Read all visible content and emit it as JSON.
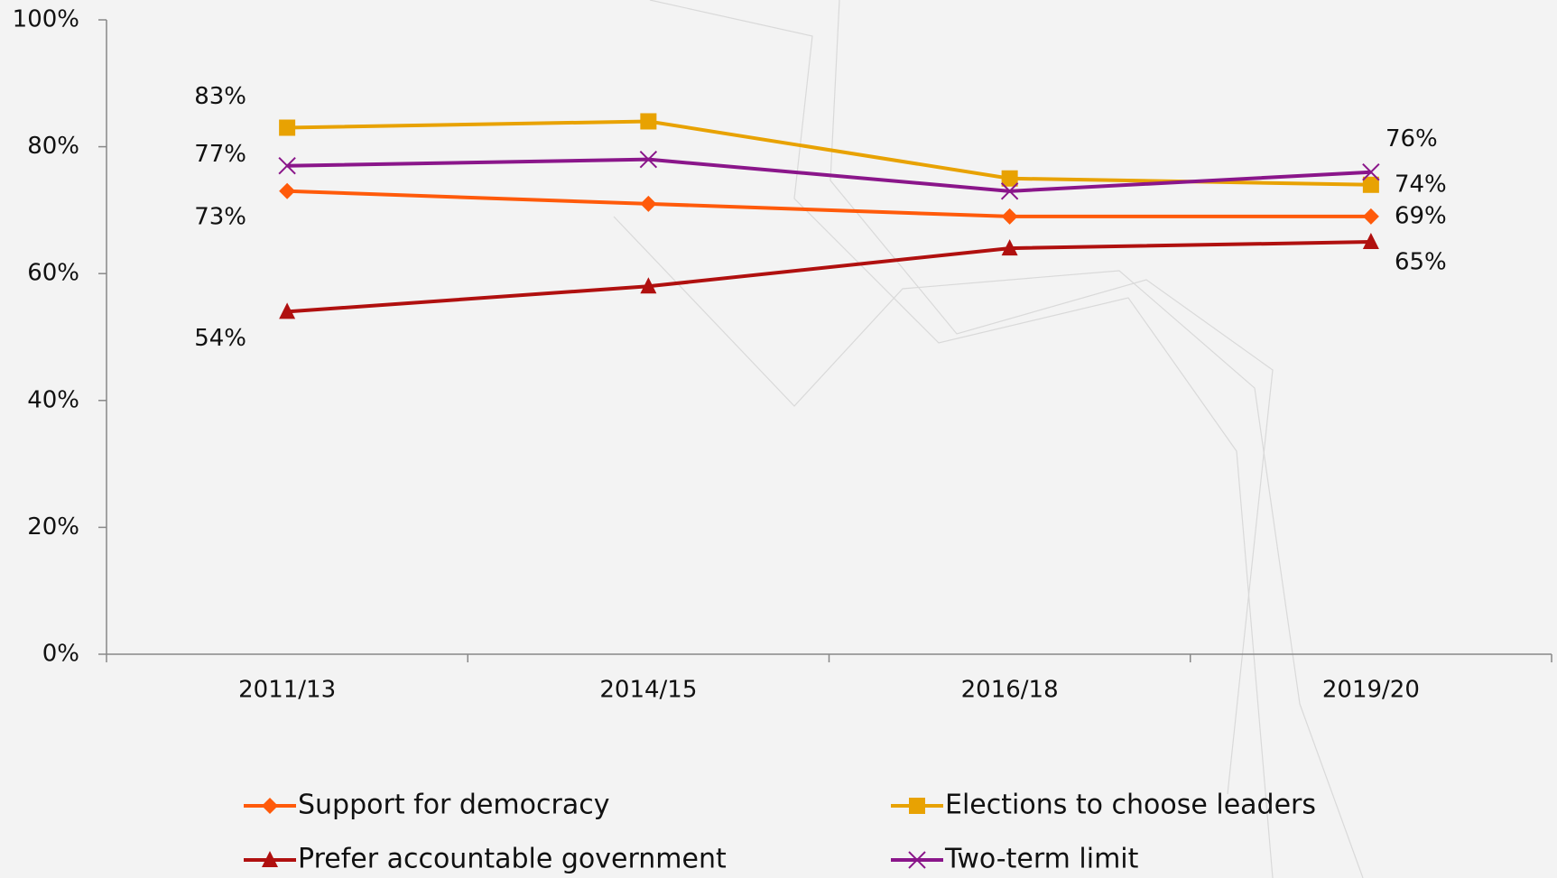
{
  "chart_data": {
    "type": "line",
    "categories": [
      "2011/13",
      "2014/15",
      "2016/18",
      "2019/20"
    ],
    "series": [
      {
        "name": "Support for democracy",
        "color": "#ff5a0a",
        "marker": "diamond",
        "values": [
          73,
          71,
          69,
          69
        ],
        "value_labels": [
          "73%",
          null,
          null,
          "69%"
        ]
      },
      {
        "name": "Elections to choose leaders",
        "color": "#e8a202",
        "marker": "square",
        "values": [
          83,
          84,
          75,
          74
        ],
        "value_labels": [
          "83%",
          null,
          null,
          "74%"
        ]
      },
      {
        "name": "Prefer accountable government",
        "color": "#b0100f",
        "marker": "triangle",
        "values": [
          54,
          58,
          64,
          65
        ],
        "value_labels": [
          "54%",
          null,
          null,
          "65%"
        ]
      },
      {
        "name": "Two-term limit",
        "color": "#8a168a",
        "marker": "x",
        "values": [
          77,
          78,
          73,
          76
        ],
        "value_labels": [
          "77%",
          null,
          null,
          "76%"
        ]
      }
    ],
    "ylim": [
      0,
      100
    ],
    "yticks": [
      {
        "value": 0,
        "label": "0%"
      },
      {
        "value": 20,
        "label": "20%"
      },
      {
        "value": 40,
        "label": "40%"
      },
      {
        "value": 60,
        "label": "60%"
      },
      {
        "value": 80,
        "label": "80%"
      },
      {
        "value": 100,
        "label": "100%"
      }
    ],
    "grid": false,
    "legend": "bottom"
  }
}
